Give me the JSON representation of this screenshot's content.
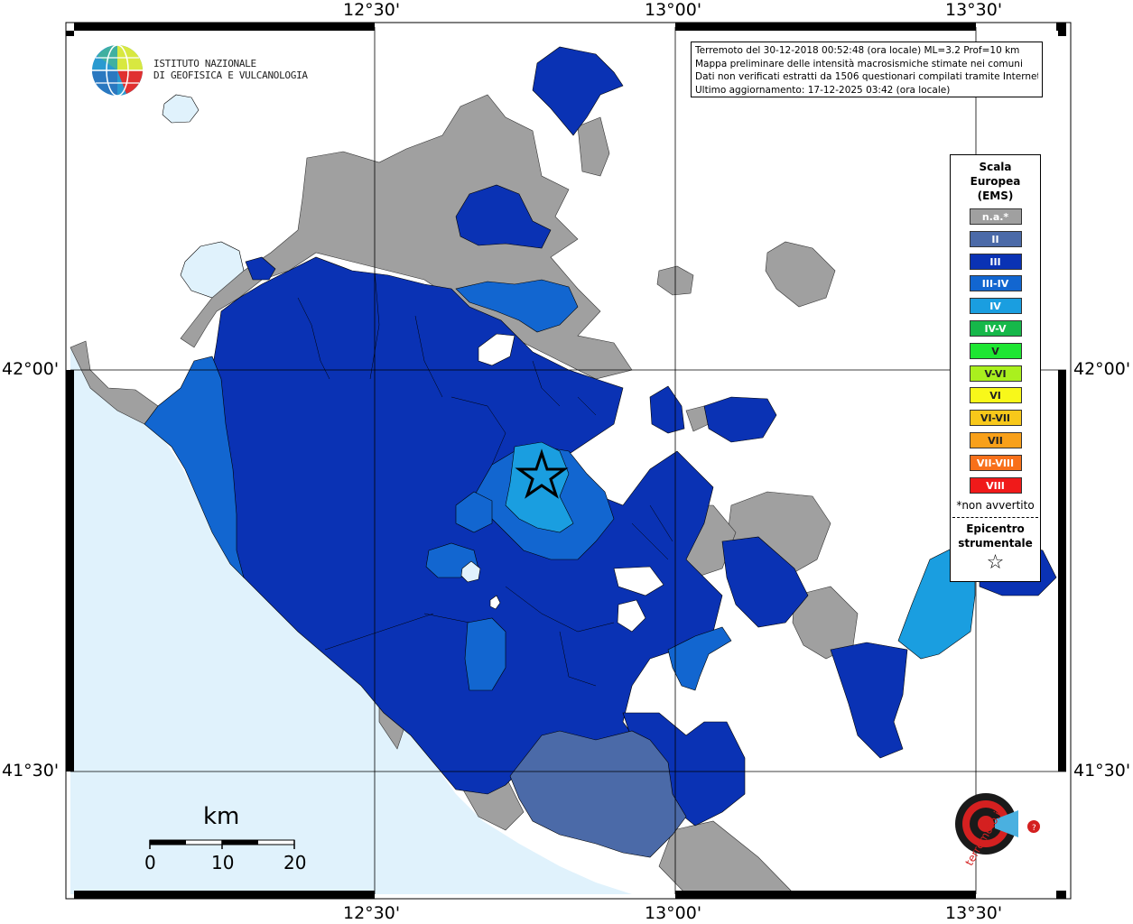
{
  "map": {
    "lon_labels": [
      "12°30'",
      "13°00'",
      "13°30'"
    ],
    "lat_labels": [
      "42°00'",
      "41°30'"
    ]
  },
  "info": {
    "line1": "Terremoto del 30-12-2018 00:52:48 (ora locale) ML=3.2 Prof=10 km",
    "line2": "Mappa preliminare delle intensità macrosismiche stimate nei comuni",
    "line3": "Dati non verificati estratti da 1506 questionari compilati tramite Internet.",
    "line4": "Ultimo aggiornamento: 17-12-2025 03:42 (ora locale)"
  },
  "legend": {
    "title_l1": "Scala",
    "title_l2": "Europea",
    "title_l3": "(EMS)",
    "items": [
      {
        "label": "n.a.*",
        "color": "#a0a0a0"
      },
      {
        "label": "II",
        "color": "#4b6aa8"
      },
      {
        "label": "III",
        "color": "#0a32b4"
      },
      {
        "label": "III-IV",
        "color": "#1266d0"
      },
      {
        "label": "IV",
        "color": "#1a9ee0"
      },
      {
        "label": "IV-V",
        "color": "#16b84a"
      },
      {
        "label": "V",
        "color": "#1ee632"
      },
      {
        "label": "V-VI",
        "color": "#aaf01e"
      },
      {
        "label": "VI",
        "color": "#f8f81a"
      },
      {
        "label": "VI-VII",
        "color": "#f8c81a"
      },
      {
        "label": "VII",
        "color": "#f8a01a"
      },
      {
        "label": "VII-VIII",
        "color": "#f8701a"
      },
      {
        "label": "VIII",
        "color": "#f01a1a"
      }
    ],
    "note": "*non avvertito",
    "epi_l1": "Epicentro",
    "epi_l2": "strumentale"
  },
  "logo": {
    "line1": "ISTITUTO NAZIONALE",
    "line2": "DI GEOFISICA E VULCANOLOGIA"
  },
  "scale": {
    "unit": "km",
    "ticks": [
      "0",
      "10",
      "20"
    ]
  },
  "colors": {
    "sea": "#e0f2fc",
    "na": "#a0a0a0",
    "ii": "#4b6aa8",
    "iii": "#0a32b4",
    "iii_iv": "#1266d0",
    "iv": "#1a9ee0"
  }
}
